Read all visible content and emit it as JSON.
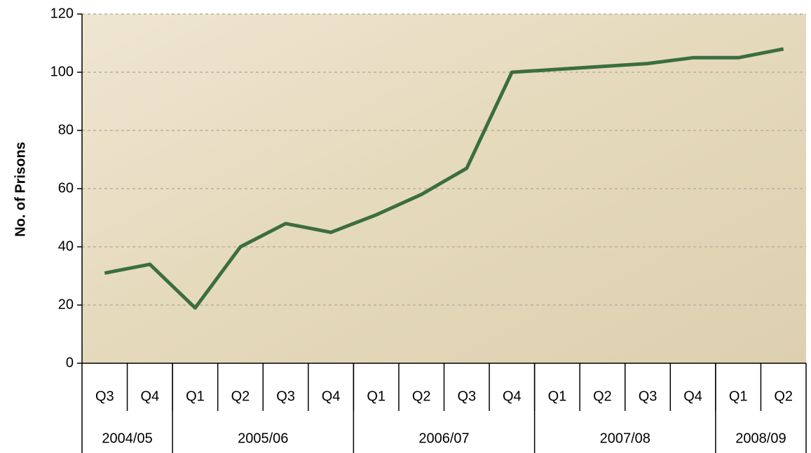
{
  "chart_data": {
    "type": "line",
    "y_label": "No. of Prisons",
    "categories": [
      "Q3",
      "Q4",
      "Q1",
      "Q2",
      "Q3",
      "Q4",
      "Q1",
      "Q2",
      "Q3",
      "Q4",
      "Q1",
      "Q2",
      "Q3",
      "Q4",
      "Q1",
      "Q2"
    ],
    "groups": [
      {
        "label": "2004/05",
        "count": 2
      },
      {
        "label": "2005/06",
        "count": 4
      },
      {
        "label": "2006/07",
        "count": 4
      },
      {
        "label": "2007/08",
        "count": 4
      },
      {
        "label": "2008/09",
        "count": 2
      }
    ],
    "series": [
      {
        "color": "#3b6e40",
        "values": [
          31,
          34,
          19,
          40,
          48,
          45,
          51,
          58,
          67,
          100,
          101,
          102,
          103,
          105,
          105,
          108
        ]
      }
    ],
    "ylim": [
      0,
      120
    ],
    "yticks": [
      0,
      20,
      40,
      60,
      80,
      100,
      120
    ],
    "grid": true
  }
}
